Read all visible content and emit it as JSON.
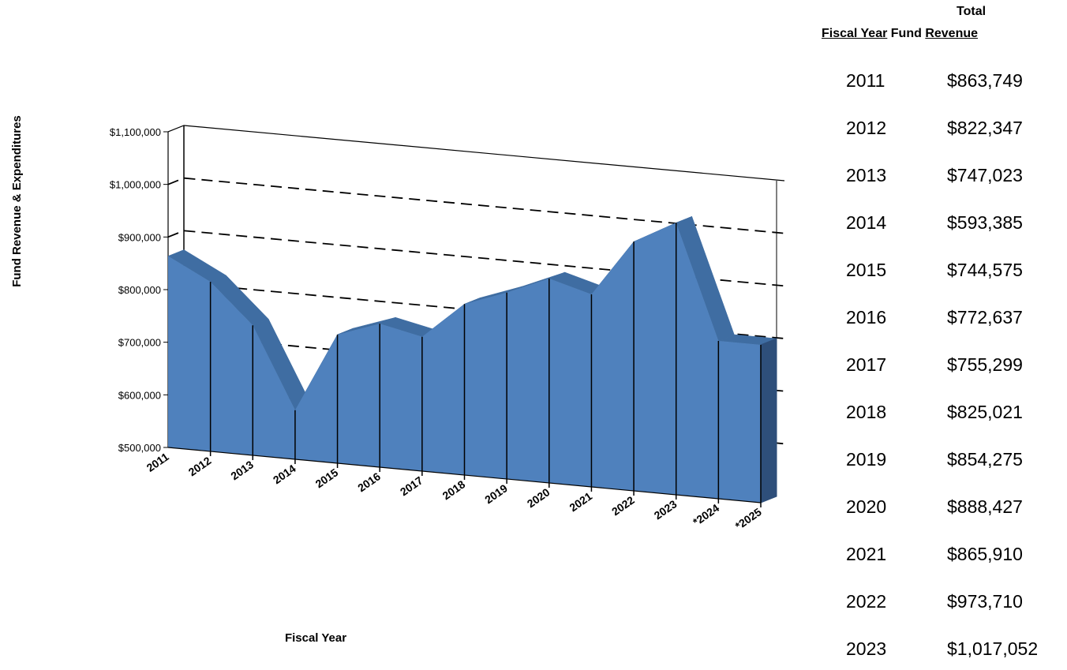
{
  "chart_data": {
    "type": "area",
    "title": "",
    "xlabel": "Fiscal Year",
    "ylabel": "Fund Revenue & Expenditures",
    "ylim": [
      500000,
      1100000
    ],
    "y_ticks": [
      "$500,000",
      "$600,000",
      "$700,000",
      "$800,000",
      "$900,000",
      "$1,000,000",
      "$1,100,000"
    ],
    "y_tick_values": [
      500000,
      600000,
      700000,
      800000,
      900000,
      1000000,
      1100000
    ],
    "categories": [
      "2011",
      "2012",
      "2013",
      "2014",
      "2015",
      "2016",
      "2017",
      "2018",
      "2019",
      "2020",
      "2021",
      "2022",
      "2023",
      "*2024",
      "*2025"
    ],
    "series": [
      {
        "values": [
          863749,
          822347,
          747023,
          593385,
          744575,
          772637,
          755299,
          825021,
          854275,
          888427,
          865910,
          973710,
          1017052,
          800000,
          800000
        ]
      }
    ],
    "grid": "dashed horizontal",
    "style": "3d",
    "colors": {
      "area_front": "#4f81bd",
      "area_top": "#3f6da2",
      "area_side": "#2e4f7a",
      "grid": "#000000"
    }
  },
  "table": {
    "header_total": "Total",
    "header_fiscal_year": "Fiscal Year",
    "header_fund": "Fund",
    "header_revenue": "Revenue",
    "rows": [
      {
        "year": "2011",
        "revenue": "$863,749"
      },
      {
        "year": "2012",
        "revenue": "$822,347"
      },
      {
        "year": "2013",
        "revenue": "$747,023"
      },
      {
        "year": "2014",
        "revenue": "$593,385"
      },
      {
        "year": "2015",
        "revenue": "$744,575"
      },
      {
        "year": "2016",
        "revenue": "$772,637"
      },
      {
        "year": "2017",
        "revenue": "$755,299"
      },
      {
        "year": "2018",
        "revenue": "$825,021"
      },
      {
        "year": "2019",
        "revenue": "$854,275"
      },
      {
        "year": "2020",
        "revenue": "$888,427"
      },
      {
        "year": "2021",
        "revenue": "$865,910"
      },
      {
        "year": "2022",
        "revenue": "$973,710"
      },
      {
        "year": "2023",
        "revenue": "$1,017,052"
      }
    ]
  }
}
